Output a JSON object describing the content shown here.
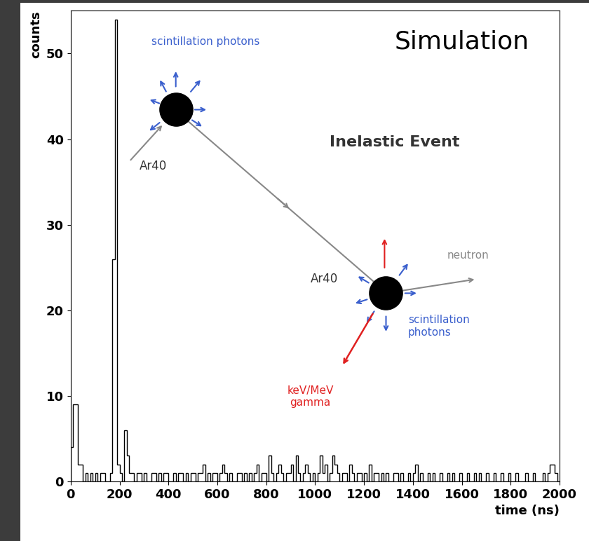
{
  "chart_data": {
    "type": "histogram",
    "xlabel": "time (ns)",
    "ylabel": "counts",
    "color": "#000000",
    "bins": [
      0,
      10,
      20,
      30,
      40,
      50,
      60,
      70,
      80,
      90,
      100,
      110,
      120,
      130,
      140,
      150,
      160,
      170,
      180,
      190,
      200,
      210,
      220,
      230,
      240,
      250,
      260,
      270,
      280,
      290,
      300,
      310,
      320,
      330,
      340,
      350,
      360,
      370,
      380,
      390,
      400,
      410,
      420,
      430,
      440,
      450,
      460,
      470,
      480,
      490,
      500,
      510,
      520,
      530,
      540,
      550,
      560,
      570,
      580,
      590,
      600,
      610,
      620,
      630,
      640,
      650,
      660,
      670,
      680,
      690,
      700,
      710,
      720,
      730,
      740,
      750,
      760,
      770,
      780,
      790,
      800,
      810,
      820,
      830,
      840,
      850,
      860,
      870,
      880,
      890,
      900,
      910,
      920,
      930,
      940,
      950,
      960,
      970,
      980,
      990,
      1000,
      1010,
      1020,
      1030,
      1040,
      1050,
      1060,
      1070,
      1080,
      1090,
      1100,
      1110,
      1120,
      1130,
      1140,
      1150,
      1160,
      1170,
      1180,
      1190,
      1200,
      1210,
      1220,
      1230,
      1240,
      1250,
      1260,
      1270,
      1280,
      1290,
      1300,
      1310,
      1320,
      1330,
      1340,
      1350,
      1360,
      1370,
      1380,
      1390,
      1400,
      1410,
      1420,
      1430,
      1440,
      1450,
      1460,
      1470,
      1480,
      1490,
      1500,
      1510,
      1520,
      1530,
      1540,
      1550,
      1560,
      1570,
      1580,
      1590,
      1600,
      1610,
      1620,
      1630,
      1640,
      1650,
      1660,
      1670,
      1680,
      1690,
      1700,
      1710,
      1720,
      1730,
      1740,
      1750,
      1760,
      1770,
      1780,
      1790,
      1800,
      1810,
      1820,
      1830,
      1840,
      1850,
      1860,
      1870,
      1880,
      1890,
      1900,
      1910,
      1920,
      1930,
      1940,
      1950,
      1960,
      1970,
      1980,
      1990,
      2000
    ],
    "values": [
      4,
      9,
      9,
      2,
      2,
      0,
      1,
      0,
      1,
      0,
      1,
      0,
      1,
      1,
      0,
      0,
      1,
      26,
      54,
      2,
      1,
      0,
      6,
      3,
      1,
      1,
      0,
      1,
      1,
      0,
      1,
      0,
      0,
      1,
      1,
      0,
      1,
      0,
      1,
      1,
      0,
      0,
      1,
      0,
      1,
      1,
      0,
      1,
      0,
      1,
      1,
      0,
      1,
      1,
      2,
      0,
      1,
      0,
      1,
      1,
      0,
      1,
      2,
      1,
      0,
      1,
      0,
      0,
      1,
      1,
      0,
      1,
      0,
      1,
      0,
      1,
      2,
      0,
      1,
      1,
      0,
      3,
      1,
      0,
      1,
      2,
      1,
      0,
      1,
      1,
      2,
      0,
      3,
      1,
      0,
      1,
      2,
      1,
      0,
      1,
      0,
      1,
      3,
      1,
      2,
      0,
      1,
      3,
      2,
      1,
      0,
      1,
      1,
      0,
      2,
      1,
      0,
      1,
      1,
      0,
      1,
      0,
      2,
      0,
      1,
      1,
      0,
      1,
      0,
      1,
      0,
      0,
      1,
      1,
      0,
      1,
      0,
      0,
      1,
      0,
      1,
      2,
      0,
      1,
      0,
      0,
      1,
      0,
      1,
      0,
      0,
      1,
      0,
      0,
      1,
      0,
      1,
      0,
      0,
      1,
      0,
      0,
      1,
      0,
      0,
      1,
      0,
      1,
      0,
      0,
      1,
      0,
      0,
      1,
      0,
      0,
      1,
      0,
      0,
      1,
      0,
      0,
      1,
      0,
      0,
      0,
      1,
      0,
      0,
      1,
      0,
      0,
      0,
      1,
      0,
      1,
      2,
      2,
      1,
      0
    ],
    "xlim": [
      0,
      2000
    ],
    "xticks": [
      0,
      200,
      400,
      600,
      800,
      1000,
      1200,
      1400,
      1600,
      1800,
      2000
    ],
    "ylim": [
      0,
      55
    ],
    "yticks": [
      0,
      10,
      20,
      30,
      40,
      50
    ],
    "annotations": [
      "Simulation",
      "Inelastic Event",
      "scintillation photons",
      "Ar40",
      "Ar40",
      "neutron",
      "scintillation\nphotons",
      "keV/MeV\ngamma"
    ]
  }
}
